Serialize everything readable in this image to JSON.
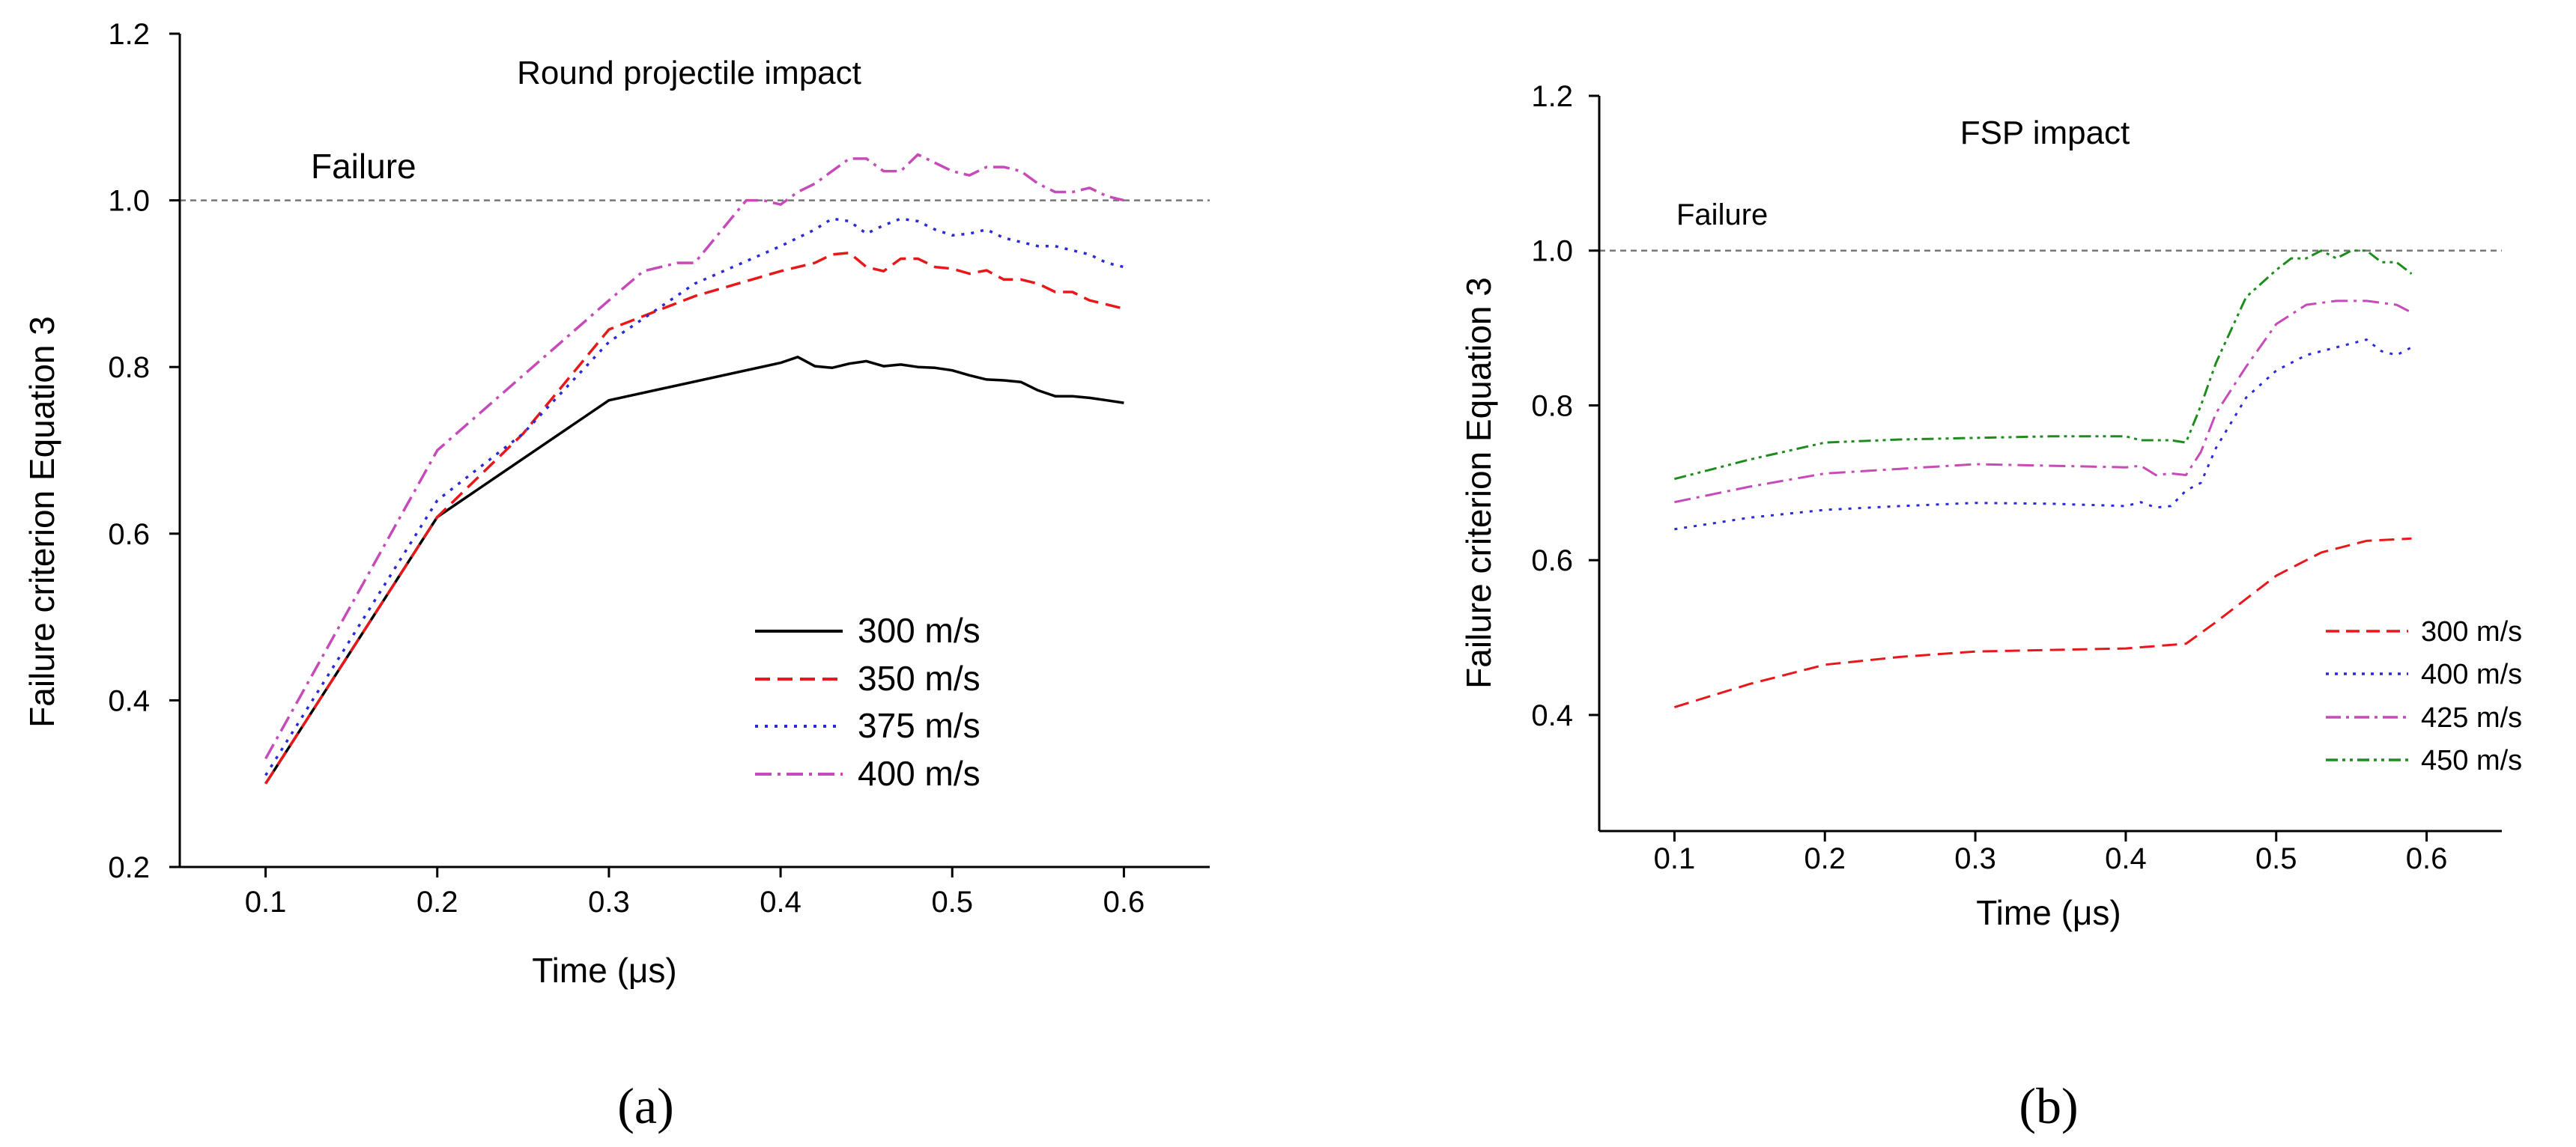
{
  "chart_data": [
    {
      "type": "line",
      "title": "Round projectile impact",
      "xlabel": "Time (μs)",
      "ylabel": "Failure criterion Equation 3",
      "xlim": [
        0.05,
        0.65
      ],
      "ylim": [
        0.2,
        1.2
      ],
      "x_ticks": [
        "0.1",
        "0.2",
        "0.3",
        "0.4",
        "0.5",
        "0.6"
      ],
      "y_ticks": [
        "0.2",
        "0.4",
        "0.6",
        "0.8",
        "1.0",
        "1.2"
      ],
      "reference_line": {
        "label": "Failure",
        "y": 1.0
      },
      "panel_label": "(a)",
      "series": [
        {
          "name": "300 m/s",
          "color": "#000000",
          "dash": "solid",
          "x": [
            0.1,
            0.2,
            0.3,
            0.4,
            0.41,
            0.42,
            0.43,
            0.44,
            0.45,
            0.46,
            0.47,
            0.48,
            0.49,
            0.5,
            0.51,
            0.52,
            0.53,
            0.54,
            0.55,
            0.56,
            0.57,
            0.58,
            0.59,
            0.6
          ],
          "y": [
            0.3,
            0.62,
            0.76,
            0.805,
            0.812,
            0.801,
            0.799,
            0.804,
            0.807,
            0.801,
            0.803,
            0.8,
            0.799,
            0.796,
            0.79,
            0.785,
            0.784,
            0.782,
            0.772,
            0.765,
            0.765,
            0.763,
            0.76,
            0.757
          ]
        },
        {
          "name": "350 m/s",
          "color": "#e8171a",
          "dash": "dashed",
          "x": [
            0.1,
            0.2,
            0.25,
            0.3,
            0.35,
            0.4,
            0.42,
            0.43,
            0.44,
            0.45,
            0.46,
            0.47,
            0.48,
            0.49,
            0.5,
            0.51,
            0.52,
            0.53,
            0.54,
            0.55,
            0.56,
            0.57,
            0.58,
            0.59,
            0.6
          ],
          "y": [
            0.3,
            0.62,
            0.72,
            0.845,
            0.885,
            0.915,
            0.925,
            0.935,
            0.937,
            0.92,
            0.915,
            0.93,
            0.93,
            0.92,
            0.918,
            0.912,
            0.916,
            0.905,
            0.905,
            0.9,
            0.89,
            0.89,
            0.88,
            0.875,
            0.87
          ]
        },
        {
          "name": "375 m/s",
          "color": "#2a2ad8",
          "dash": "dotted",
          "x": [
            0.1,
            0.2,
            0.25,
            0.3,
            0.35,
            0.4,
            0.42,
            0.43,
            0.44,
            0.45,
            0.46,
            0.47,
            0.48,
            0.49,
            0.5,
            0.51,
            0.52,
            0.53,
            0.54,
            0.55,
            0.56,
            0.57,
            0.58,
            0.59,
            0.6
          ],
          "y": [
            0.31,
            0.64,
            0.72,
            0.83,
            0.9,
            0.945,
            0.965,
            0.978,
            0.975,
            0.96,
            0.97,
            0.978,
            0.975,
            0.965,
            0.958,
            0.96,
            0.965,
            0.955,
            0.95,
            0.945,
            0.945,
            0.94,
            0.935,
            0.925,
            0.92
          ]
        },
        {
          "name": "400 m/s",
          "color": "#c64ab8",
          "dash": "dashdot",
          "x": [
            0.1,
            0.2,
            0.3,
            0.32,
            0.34,
            0.35,
            0.37,
            0.38,
            0.39,
            0.4,
            0.41,
            0.42,
            0.43,
            0.44,
            0.45,
            0.46,
            0.47,
            0.48,
            0.49,
            0.5,
            0.51,
            0.52,
            0.53,
            0.54,
            0.55,
            0.56,
            0.57,
            0.58,
            0.59,
            0.6
          ],
          "y": [
            0.33,
            0.7,
            0.88,
            0.915,
            0.925,
            0.925,
            0.975,
            1.0,
            1.0,
            0.995,
            1.01,
            1.02,
            1.035,
            1.05,
            1.05,
            1.035,
            1.035,
            1.055,
            1.045,
            1.035,
            1.03,
            1.04,
            1.04,
            1.035,
            1.02,
            1.01,
            1.01,
            1.015,
            1.005,
            1.0
          ]
        }
      ],
      "legend": {
        "position": "bottom-right"
      }
    },
    {
      "type": "line",
      "title": "FSP impact",
      "xlabel": "Time (μs)",
      "ylabel": "Failure criterion Equation 3",
      "xlim": [
        0.05,
        0.65
      ],
      "ylim": [
        0.25,
        1.2
      ],
      "x_ticks": [
        "0.1",
        "0.2",
        "0.3",
        "0.4",
        "0.5",
        "0.6"
      ],
      "y_ticks": [
        "0.4",
        "0.6",
        "0.8",
        "1.0",
        "1.2"
      ],
      "reference_line": {
        "label": "Failure",
        "y": 1.0
      },
      "panel_label": "(b)",
      "series": [
        {
          "name": "300 m/s",
          "color": "#e8171a",
          "dash": "dashed",
          "x": [
            0.1,
            0.15,
            0.2,
            0.25,
            0.3,
            0.35,
            0.4,
            0.44,
            0.46,
            0.5,
            0.53,
            0.56,
            0.59
          ],
          "y": [
            0.41,
            0.44,
            0.465,
            0.475,
            0.482,
            0.484,
            0.486,
            0.492,
            0.52,
            0.58,
            0.61,
            0.625,
            0.628
          ]
        },
        {
          "name": "400 m/s",
          "color": "#2a2ad8",
          "dash": "dotted",
          "x": [
            0.1,
            0.15,
            0.2,
            0.25,
            0.3,
            0.35,
            0.4,
            0.41,
            0.42,
            0.43,
            0.44,
            0.45,
            0.46,
            0.48,
            0.5,
            0.52,
            0.54,
            0.56,
            0.57,
            0.58,
            0.59
          ],
          "y": [
            0.64,
            0.655,
            0.665,
            0.67,
            0.674,
            0.673,
            0.67,
            0.675,
            0.668,
            0.67,
            0.69,
            0.7,
            0.745,
            0.81,
            0.845,
            0.865,
            0.875,
            0.885,
            0.87,
            0.865,
            0.875
          ]
        },
        {
          "name": "425 m/s",
          "color": "#c64ab8",
          "dash": "dashdot",
          "x": [
            0.1,
            0.15,
            0.2,
            0.25,
            0.3,
            0.35,
            0.4,
            0.41,
            0.42,
            0.43,
            0.44,
            0.45,
            0.46,
            0.48,
            0.5,
            0.52,
            0.54,
            0.56,
            0.58,
            0.59
          ],
          "y": [
            0.675,
            0.695,
            0.712,
            0.718,
            0.724,
            0.722,
            0.72,
            0.722,
            0.71,
            0.712,
            0.71,
            0.74,
            0.79,
            0.85,
            0.905,
            0.93,
            0.935,
            0.935,
            0.93,
            0.92
          ]
        },
        {
          "name": "450 m/s",
          "color": "#1e8c1e",
          "dash": "dashdotdot",
          "x": [
            0.1,
            0.15,
            0.2,
            0.25,
            0.3,
            0.35,
            0.4,
            0.41,
            0.42,
            0.43,
            0.44,
            0.45,
            0.46,
            0.48,
            0.5,
            0.51,
            0.52,
            0.53,
            0.54,
            0.55,
            0.56,
            0.57,
            0.58,
            0.59
          ],
          "y": [
            0.705,
            0.73,
            0.752,
            0.756,
            0.758,
            0.76,
            0.76,
            0.755,
            0.755,
            0.755,
            0.752,
            0.8,
            0.855,
            0.94,
            0.975,
            0.99,
            0.99,
            1.0,
            0.99,
            1.0,
            1.0,
            0.985,
            0.985,
            0.97
          ]
        }
      ],
      "legend": {
        "position": "bottom-right"
      }
    }
  ]
}
